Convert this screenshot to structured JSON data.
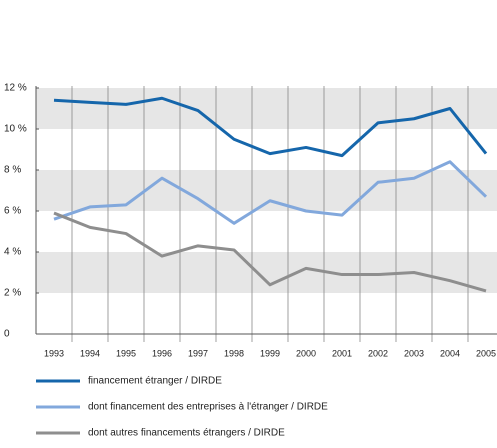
{
  "chart_data": {
    "type": "line",
    "categories": [
      "1993",
      "1994",
      "1995",
      "1996",
      "1997",
      "1998",
      "1999",
      "2000",
      "2001",
      "2002",
      "2003",
      "2004",
      "2005"
    ],
    "series": [
      {
        "name": "financement étranger / DIRDE",
        "color": "#1566ab",
        "values": [
          11.4,
          11.3,
          11.2,
          11.5,
          10.9,
          9.5,
          8.8,
          9.1,
          8.7,
          10.3,
          10.5,
          11.0,
          8.8
        ]
      },
      {
        "name": "dont financement des entreprises à l'étranger  / DIRDE",
        "color": "#82a8dc",
        "values": [
          5.6,
          6.2,
          6.3,
          7.6,
          6.6,
          5.4,
          6.5,
          6.0,
          5.8,
          7.4,
          7.6,
          8.4,
          6.7
        ]
      },
      {
        "name": "dont autres financements étrangers / DIRDE",
        "color": "#8e8e8e",
        "values": [
          5.9,
          5.2,
          4.9,
          3.8,
          4.3,
          4.1,
          2.4,
          3.2,
          2.9,
          2.9,
          3.0,
          2.6,
          2.1
        ]
      }
    ],
    "ylim": [
      0,
      12
    ],
    "yticks": [
      0,
      {
        "value": 2,
        "label": "2 %"
      },
      {
        "value": 4,
        "label": "4 %"
      },
      {
        "value": 6,
        "label": "6 %"
      },
      {
        "value": 8,
        "label": "8 %"
      },
      {
        "value": 10,
        "label": "10 %"
      },
      {
        "value": 12,
        "label": "12 %"
      }
    ],
    "grid": true
  }
}
